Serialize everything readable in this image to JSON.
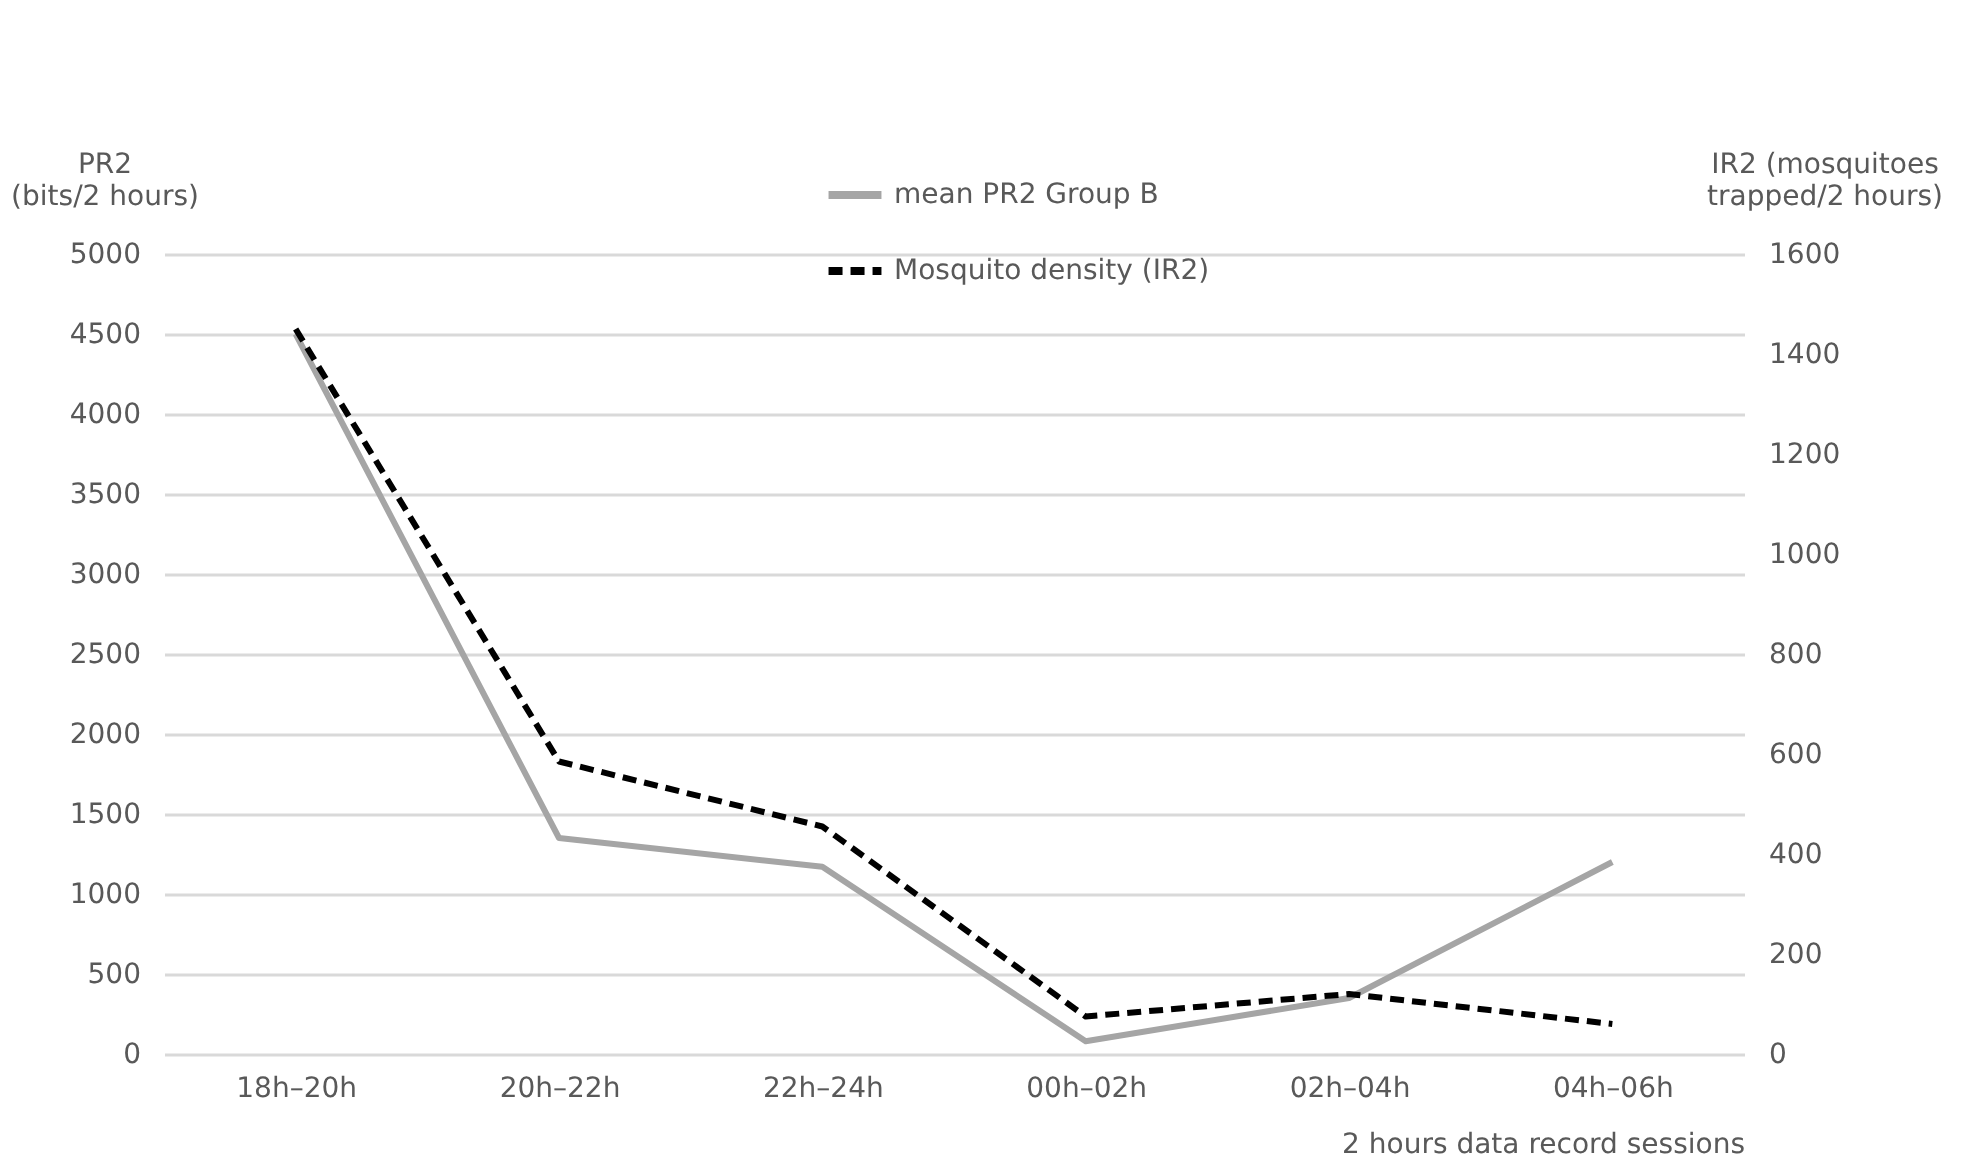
{
  "chart_data": {
    "type": "line",
    "ylabel": "PR2\n(bits/2 hours)",
    "y2label": "IR2 (mosquitoes\ntrapped/2 hours)",
    "xlabel": "2 hours data record sessions",
    "categories": [
      "18h–20h",
      "20h–22h",
      "22h–24h",
      "00h–02h",
      "02h–04h",
      "04h–06h"
    ],
    "series": [
      {
        "name": "mean PR2 Group B",
        "color": "#a5a5a5",
        "line_style": "solid",
        "values": [
          4500,
          1350,
          1170,
          80,
          350,
          1200
        ]
      },
      {
        "name": "Mosquito density (IR2)",
        "color": "#000000",
        "line_style": "dashed",
        "axis": "y2",
        "values": [
          1450,
          585,
          455,
          75,
          120,
          60
        ]
      }
    ],
    "ylim": [
      0,
      5000
    ],
    "yticks": [
      0,
      500,
      1000,
      1500,
      2000,
      2500,
      3000,
      3500,
      4000,
      4500,
      5000
    ],
    "y2lim": [
      0,
      1600
    ],
    "y2ticks": [
      0,
      200,
      400,
      600,
      800,
      1000,
      1200,
      1400,
      1600
    ],
    "grid": "y",
    "legend": "top",
    "marker": "none"
  }
}
